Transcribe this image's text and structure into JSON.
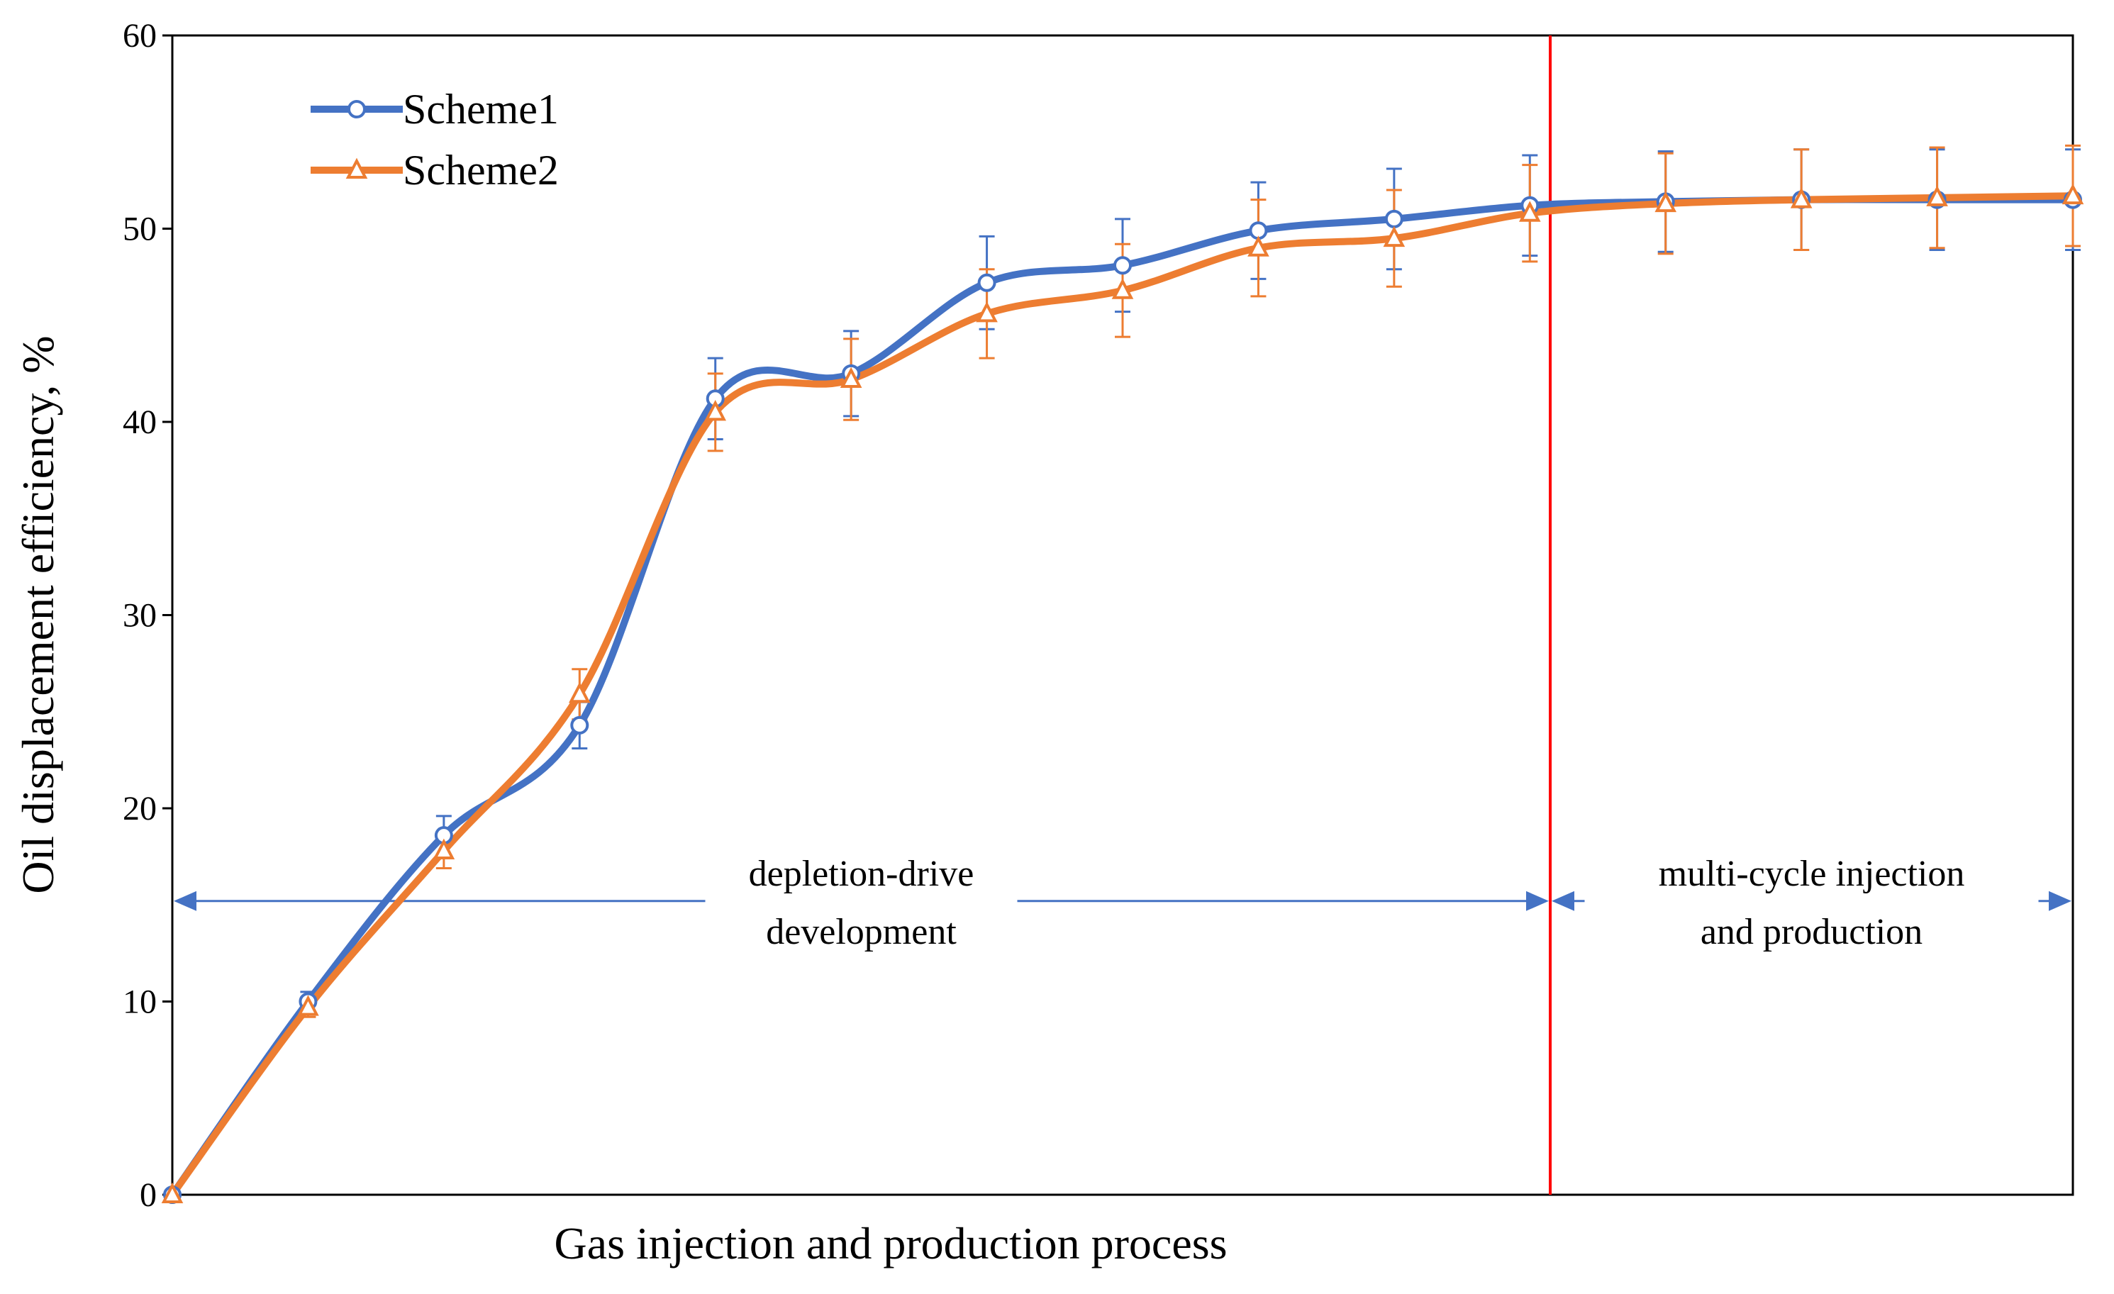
{
  "chart_data": {
    "type": "line",
    "title": "",
    "xlabel": "Gas injection  and production process",
    "ylabel": "Oil displacement  efficiency,  %",
    "ylim": [
      0,
      60
    ],
    "yticks": [
      0,
      10,
      20,
      30,
      40,
      50,
      60
    ],
    "x": [
      0,
      1,
      2,
      3,
      4,
      5,
      6,
      7,
      8,
      9,
      10,
      11,
      12,
      13,
      14
    ],
    "xlim": [
      0,
      14
    ],
    "legend_position": "top-left",
    "series": [
      {
        "name": "Scheme1",
        "color": "#4472C4",
        "marker": "circle",
        "values": [
          0,
          10.0,
          18.6,
          24.3,
          41.2,
          42.5,
          47.2,
          48.1,
          49.9,
          50.5,
          51.2,
          51.4,
          51.5,
          51.5,
          51.5
        ],
        "error": [
          0,
          0.5,
          1.0,
          1.2,
          2.1,
          2.2,
          2.4,
          2.4,
          2.5,
          2.6,
          2.6,
          2.6,
          2.6,
          2.6,
          2.6
        ]
      },
      {
        "name": "Scheme2",
        "color": "#ED7D31",
        "marker": "triangle",
        "values": [
          0,
          9.7,
          17.8,
          25.9,
          40.5,
          42.2,
          45.6,
          46.8,
          49.0,
          49.5,
          50.8,
          51.3,
          51.5,
          51.6,
          51.7
        ],
        "error": [
          0,
          0.5,
          0.9,
          1.3,
          2.0,
          2.1,
          2.3,
          2.4,
          2.5,
          2.5,
          2.5,
          2.6,
          2.6,
          2.6,
          2.6
        ]
      }
    ],
    "divider": {
      "x": 10.15,
      "color": "#FF0000"
    },
    "regions": [
      {
        "label_line1": "depletion-drive",
        "label_line2": "development",
        "from_x": 0,
        "to_x": 10.15,
        "y": 15.2,
        "color": "#4472C4"
      },
      {
        "label_line1": "multi-cycle  injection",
        "label_line2": "and production",
        "from_x": 10.15,
        "to_x": 14,
        "y": 15.2,
        "color": "#4472C4"
      }
    ]
  }
}
